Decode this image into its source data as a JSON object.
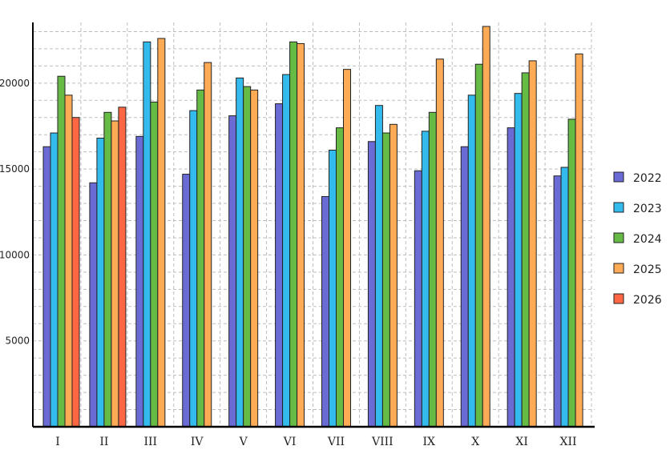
{
  "chart_data": {
    "type": "bar",
    "categories": [
      "I",
      "II",
      "III",
      "IV",
      "V",
      "VI",
      "VII",
      "VIII",
      "IX",
      "X",
      "XI",
      "XII"
    ],
    "series": [
      {
        "name": "2022",
        "color": "#6b6bd6",
        "values": [
          16300,
          14200,
          16900,
          14700,
          18100,
          18800,
          13400,
          16600,
          14900,
          16300,
          17400,
          14600
        ]
      },
      {
        "name": "2023",
        "color": "#33bbee",
        "values": [
          17100,
          16800,
          22400,
          18400,
          20300,
          20500,
          16100,
          18700,
          17200,
          19300,
          19400,
          15100
        ]
      },
      {
        "name": "2024",
        "color": "#66bb44",
        "values": [
          20400,
          18300,
          18900,
          19600,
          19800,
          22400,
          17400,
          17100,
          18300,
          21100,
          20600,
          17900
        ]
      },
      {
        "name": "2025",
        "color": "#ffaa55",
        "values": [
          19300,
          17800,
          22600,
          21200,
          19600,
          22300,
          20800,
          17600,
          21400,
          23300,
          21300,
          21700
        ]
      },
      {
        "name": "2026",
        "color": "#ff6644",
        "values": [
          18000,
          18600,
          null,
          null,
          null,
          null,
          null,
          null,
          null,
          null,
          null,
          null
        ]
      }
    ],
    "yticks": [
      5000,
      10000,
      15000,
      20000
    ],
    "ylim": [
      0,
      23300
    ],
    "grid": true,
    "legend": "right"
  }
}
